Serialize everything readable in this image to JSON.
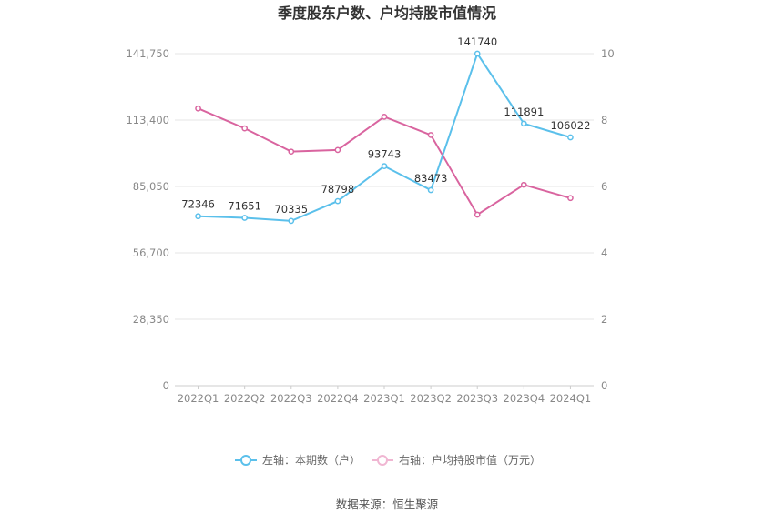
{
  "chart_data": {
    "type": "line",
    "title": "季度股东户数、户均持股市值情况",
    "categories": [
      "2022Q1",
      "2022Q2",
      "2022Q3",
      "2022Q4",
      "2023Q1",
      "2023Q2",
      "2023Q3",
      "2023Q4",
      "2024Q1"
    ],
    "series": [
      {
        "name": "左轴：本期数（户）",
        "axis": "left",
        "color": "#5bc0eb",
        "values": [
          72346,
          71651,
          70335,
          78798,
          93743,
          83473,
          141740,
          111891,
          106022
        ],
        "labels": [
          "72346",
          "71651",
          "70335",
          "78798",
          "93743",
          "83473",
          "141740",
          "111891",
          "106022"
        ]
      },
      {
        "name": "右轴：户均持股市值（万元）",
        "axis": "right",
        "color": "#d9649f",
        "values": [
          8.35,
          7.75,
          7.05,
          7.1,
          8.1,
          7.55,
          5.15,
          6.05,
          5.65
        ]
      }
    ],
    "y_left": {
      "min": 0,
      "max": 141750,
      "ticks": [
        "0",
        "28,350",
        "56,700",
        "85,050",
        "113,400",
        "141,750"
      ]
    },
    "y_right": {
      "min": 0,
      "max": 10,
      "ticks": [
        "0",
        "2",
        "4",
        "6",
        "8",
        "10"
      ]
    },
    "grid": true,
    "legend_position": "bottom"
  },
  "source": "数据来源：恒生聚源"
}
